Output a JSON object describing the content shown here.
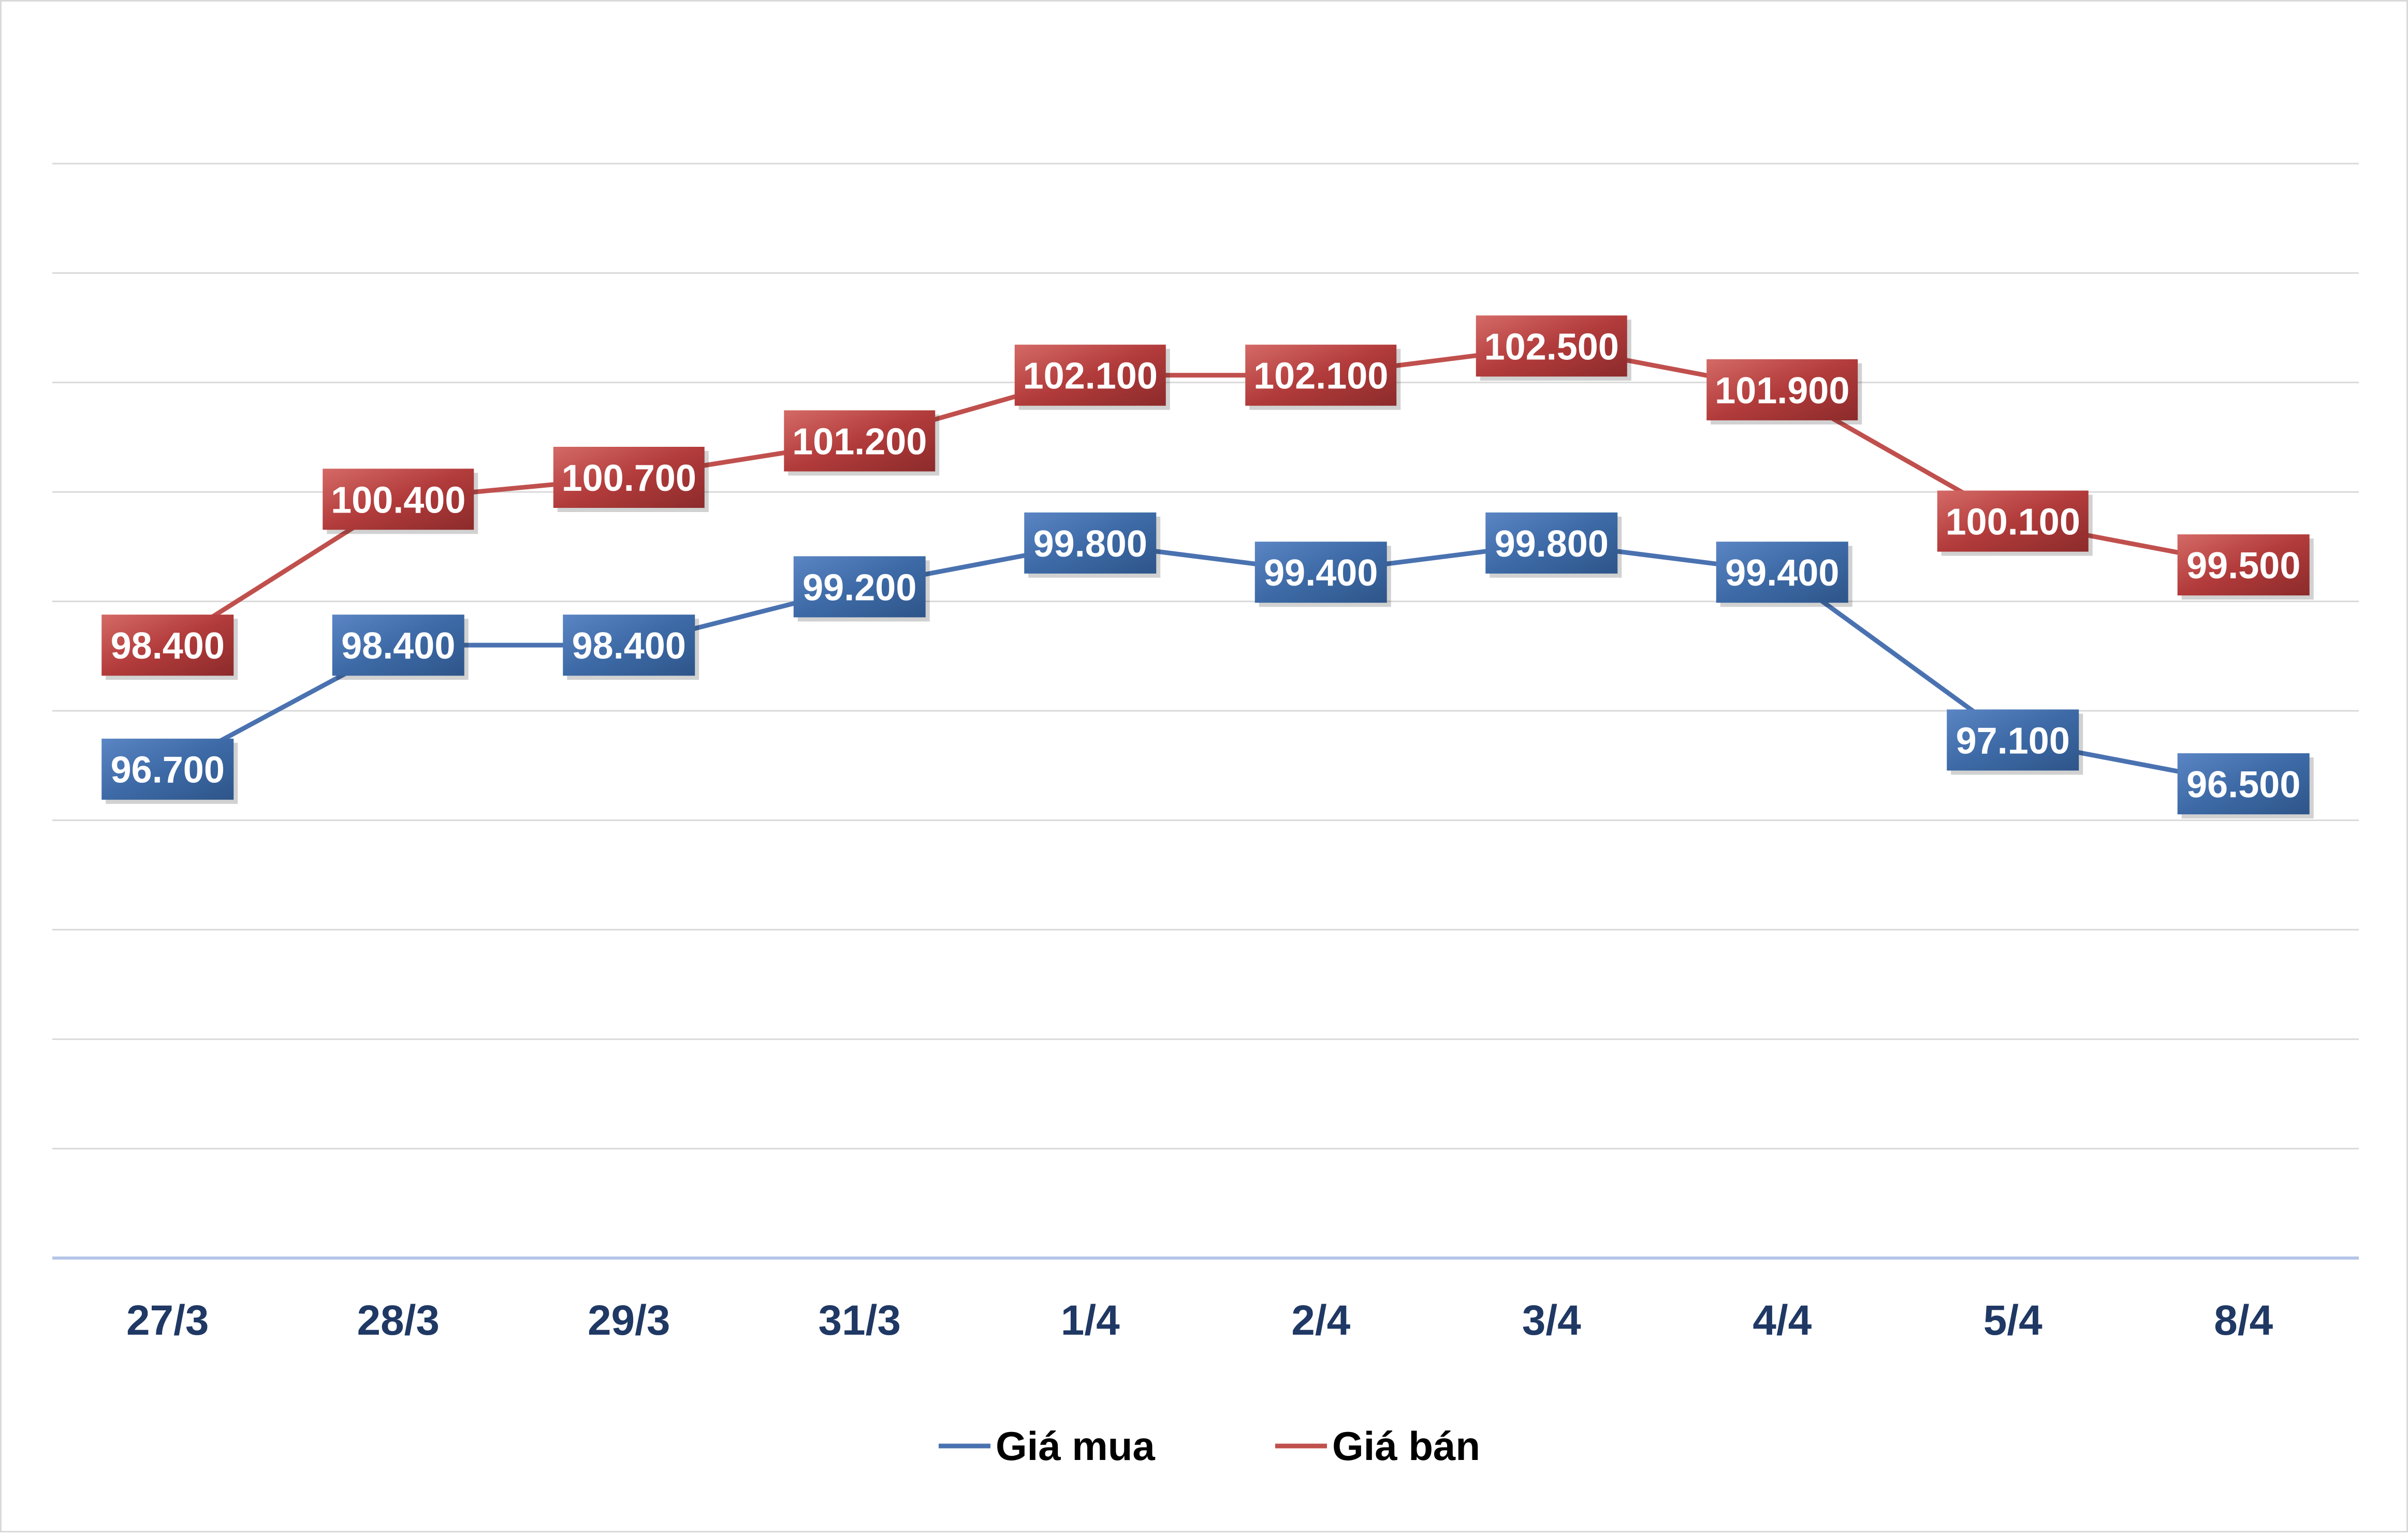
{
  "chart_data": {
    "type": "line",
    "title": "",
    "xlabel": "",
    "ylabel": "",
    "categories": [
      "27/3",
      "28/3",
      "29/3",
      "31/3",
      "1/4",
      "2/4",
      "3/4",
      "4/4",
      "5/4",
      "8/4"
    ],
    "ylim": [
      90000,
      105000
    ],
    "y_gridline_step": 1500,
    "y_tick_labels_shown": false,
    "grid": true,
    "legend_position": "bottom",
    "series": [
      {
        "name": "Giá mua",
        "color": "#4a72b0",
        "label_color": "#3d6aa6",
        "values": [
          96700,
          98400,
          98400,
          99200,
          99800,
          99400,
          99800,
          99400,
          97100,
          96500
        ],
        "labels": [
          "96.700",
          "98.400",
          "98.400",
          "99.200",
          "99.800",
          "99.400",
          "99.800",
          "99.400",
          "97.100",
          "96.500"
        ]
      },
      {
        "name": "Giá bán",
        "color": "#c0504d",
        "label_color": "#b23b3b",
        "values": [
          98400,
          100400,
          100700,
          101200,
          102100,
          102100,
          102500,
          101900,
          100100,
          99500
        ],
        "labels": [
          "98.400",
          "100.400",
          "100.700",
          "101.200",
          "102.100",
          "102.100",
          "102.500",
          "101.900",
          "100.100",
          "99.500"
        ]
      }
    ],
    "colors": {
      "axis_text": "#1f3864",
      "gridline": "#d9d9d9",
      "axis_line": "#b4c6e7"
    }
  }
}
